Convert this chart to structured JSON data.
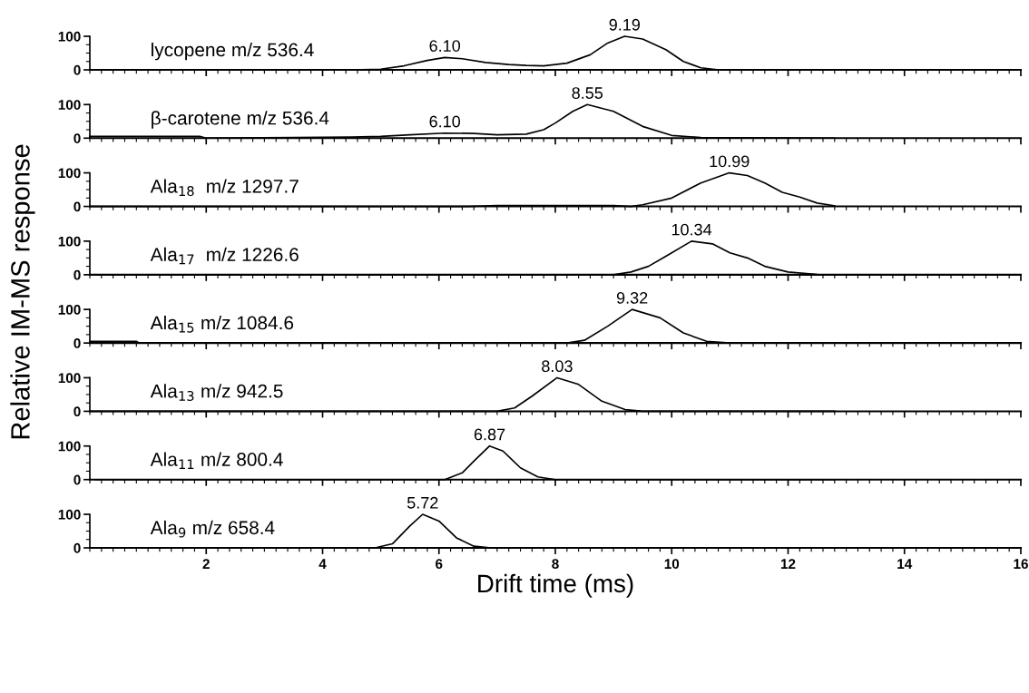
{
  "chart_data": [
    {
      "type": "line",
      "title": "lycopene m/z 536.4",
      "ylabel": "Relative IM-MS response",
      "tick_labels": "y",
      "xlim": [
        0,
        16
      ],
      "ylim": [
        0,
        100
      ],
      "xticks": [
        2,
        4,
        6,
        8,
        10,
        12,
        14,
        16
      ],
      "yticks": [
        0,
        100
      ],
      "annotations": [
        {
          "text": "6.10",
          "x": 6.1,
          "y": 37
        },
        {
          "text": "9.19",
          "x": 9.19,
          "y": 100
        }
      ],
      "series": [
        {
          "color": "#000000",
          "x": [
            0,
            2.3,
            4.5,
            5.0,
            5.4,
            5.8,
            6.1,
            6.4,
            6.8,
            7.2,
            7.5,
            7.8,
            8.2,
            8.6,
            8.9,
            9.19,
            9.5,
            9.9,
            10.2,
            10.5,
            10.8
          ],
          "values": [
            0,
            0,
            0,
            2,
            12,
            28,
            37,
            33,
            22,
            16,
            13,
            12,
            20,
            45,
            80,
            100,
            92,
            60,
            25,
            6,
            0
          ]
        }
      ]
    },
    {
      "type": "line",
      "title": "β-carotene m/z 536.4",
      "tick_labels": "y",
      "xlim": [
        0,
        16
      ],
      "ylim": [
        0,
        100
      ],
      "xticks": [
        2,
        4,
        6,
        8,
        10,
        12,
        14,
        16
      ],
      "yticks": [
        0,
        100
      ],
      "annotations": [
        {
          "text": "6.10",
          "x": 6.1,
          "y": 15
        },
        {
          "text": "8.55",
          "x": 8.55,
          "y": 100
        }
      ],
      "series": [
        {
          "color": "#000000",
          "x": [
            0,
            1.9,
            2.0,
            3.5,
            4.5,
            5.0,
            5.5,
            6.1,
            6.6,
            7.0,
            7.5,
            7.8,
            8.0,
            8.3,
            8.55,
            9.0,
            9.5,
            10.0,
            10.5,
            12.8
          ],
          "values": [
            5,
            5,
            0,
            2,
            3,
            5,
            10,
            15,
            14,
            10,
            12,
            25,
            45,
            80,
            100,
            80,
            35,
            8,
            2,
            0
          ]
        }
      ]
    },
    {
      "type": "line",
      "title": "Ala$_{18}$  m/z 1297.7",
      "tick_labels": "y",
      "xlim": [
        0,
        16
      ],
      "ylim": [
        0,
        100
      ],
      "xticks": [
        2,
        4,
        6,
        8,
        10,
        12,
        14,
        16
      ],
      "yticks": [
        0,
        100
      ],
      "annotations": [
        {
          "text": "10.99",
          "x": 10.99,
          "y": 100
        }
      ],
      "series": [
        {
          "color": "#000000",
          "x": [
            0,
            6.5,
            7.0,
            9.0,
            9.3,
            9.5,
            10.0,
            10.5,
            10.99,
            11.3,
            11.6,
            11.9,
            12.2,
            12.5,
            12.8
          ],
          "values": [
            0,
            0,
            3,
            3,
            0,
            5,
            25,
            70,
            100,
            92,
            70,
            42,
            28,
            10,
            2
          ]
        }
      ]
    },
    {
      "type": "line",
      "title": "Ala$_{17}$  m/z 1226.6",
      "tick_labels": "y",
      "xlim": [
        0,
        16
      ],
      "ylim": [
        0,
        100
      ],
      "xticks": [
        2,
        4,
        6,
        8,
        10,
        12,
        14,
        16
      ],
      "yticks": [
        0,
        100
      ],
      "annotations": [
        {
          "text": "10.34",
          "x": 10.34,
          "y": 100
        }
      ],
      "series": [
        {
          "color": "#000000",
          "x": [
            0,
            9.0,
            9.3,
            9.6,
            9.9,
            10.34,
            10.7,
            11.0,
            11.3,
            11.6,
            12.0,
            12.5,
            12.8
          ],
          "values": [
            0,
            0,
            8,
            25,
            55,
            100,
            92,
            65,
            50,
            25,
            8,
            1,
            0
          ]
        }
      ]
    },
    {
      "type": "line",
      "title": "Ala$_{15}$ m/z 1084.6",
      "tick_labels": "y",
      "xlim": [
        0,
        16
      ],
      "ylim": [
        0,
        100
      ],
      "xticks": [
        2,
        4,
        6,
        8,
        10,
        12,
        14,
        16
      ],
      "yticks": [
        0,
        100
      ],
      "annotations": [
        {
          "text": "9.32",
          "x": 9.32,
          "y": 100
        }
      ],
      "series": [
        {
          "color": "#000000",
          "x": [
            0,
            0.8,
            0.85,
            8.2,
            8.5,
            8.9,
            9.32,
            9.8,
            10.2,
            10.6,
            11.0,
            12.8
          ],
          "values": [
            5,
            5,
            0,
            0,
            8,
            50,
            100,
            75,
            30,
            5,
            0,
            0
          ]
        }
      ]
    },
    {
      "type": "line",
      "title": "Ala$_{13}$ m/z 942.5",
      "tick_labels": "y",
      "xlim": [
        0,
        16
      ],
      "ylim": [
        0,
        100
      ],
      "xticks": [
        2,
        4,
        6,
        8,
        10,
        12,
        14,
        16
      ],
      "yticks": [
        0,
        100
      ],
      "annotations": [
        {
          "text": "8.03",
          "x": 8.03,
          "y": 100
        }
      ],
      "series": [
        {
          "color": "#000000",
          "x": [
            0,
            7.0,
            7.3,
            7.6,
            8.03,
            8.4,
            8.8,
            9.2,
            9.5,
            12.8
          ],
          "values": [
            0,
            0,
            10,
            45,
            100,
            80,
            30,
            5,
            0,
            0
          ]
        }
      ]
    },
    {
      "type": "line",
      "title": "Ala$_{11}$ m/z 800.4",
      "tick_labels": "y",
      "xlim": [
        0,
        16
      ],
      "ylim": [
        0,
        100
      ],
      "xticks": [
        2,
        4,
        6,
        8,
        10,
        12,
        14,
        16
      ],
      "yticks": [
        0,
        100
      ],
      "annotations": [
        {
          "text": "6.87",
          "x": 6.87,
          "y": 100
        }
      ],
      "series": [
        {
          "color": "#000000",
          "x": [
            0.1,
            6.1,
            6.4,
            6.6,
            6.87,
            7.1,
            7.4,
            7.7,
            8.0,
            12.8
          ],
          "values": [
            0,
            0,
            20,
            55,
            100,
            85,
            35,
            8,
            0,
            0
          ]
        }
      ]
    },
    {
      "type": "line",
      "title": "Ala$_{9}$ m/z 658.4",
      "xlabel": "Drift time (ms)",
      "xlim": [
        0,
        16
      ],
      "ylim": [
        0,
        100
      ],
      "xticks": [
        2,
        4,
        6,
        8,
        10,
        12,
        14,
        16
      ],
      "yticks": [
        0,
        100
      ],
      "annotations": [
        {
          "text": "5.72",
          "x": 5.72,
          "y": 100
        }
      ],
      "series": [
        {
          "color": "#000000",
          "x": [
            0,
            4.9,
            5.2,
            5.5,
            5.72,
            6.0,
            6.3,
            6.6,
            6.9,
            12.8
          ],
          "values": [
            0,
            0,
            12,
            65,
            100,
            80,
            30,
            5,
            0,
            0
          ]
        }
      ]
    }
  ]
}
